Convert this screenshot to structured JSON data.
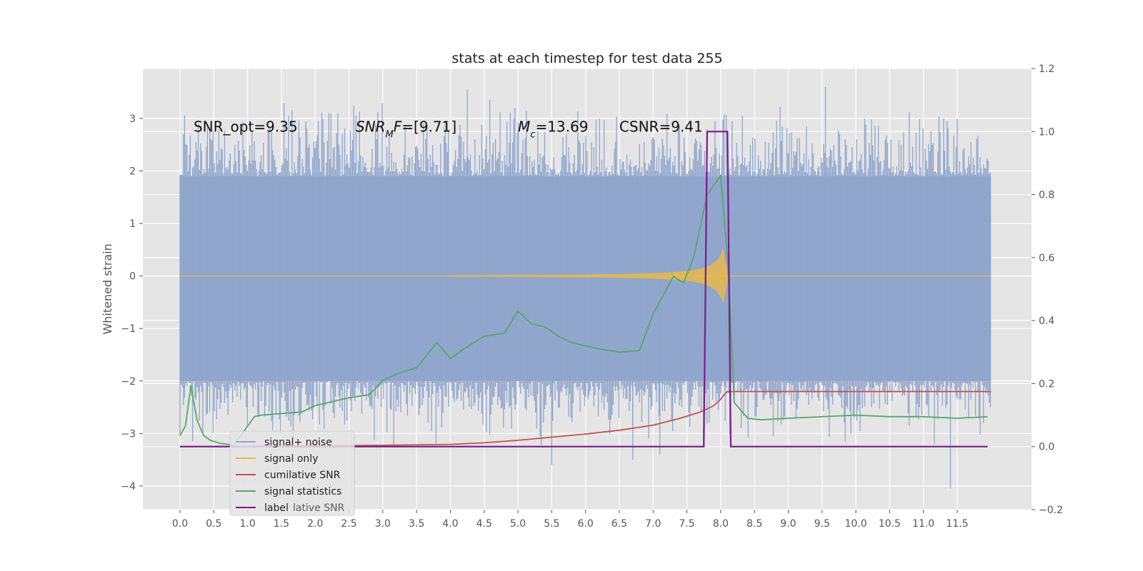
{
  "chart_data": {
    "type": "line",
    "title": "stats at each timestep for test data 255",
    "ylabel": "Whitened strain",
    "y2label": "",
    "xlim": [
      -0.55,
      12.6
    ],
    "ylim": [
      -4.45,
      3.95
    ],
    "y2lim": [
      -0.2,
      1.2
    ],
    "grid": true,
    "legend_position": "lower-left",
    "x_ticks": [
      "0.0",
      "0.5",
      "1.0",
      "1.5",
      "2.0",
      "2.5",
      "3.0",
      "3.5",
      "4.0",
      "4.5",
      "5.0",
      "5.5",
      "6.0",
      "6.5",
      "7.0",
      "7.5",
      "8.0",
      "8.5",
      "9.0",
      "9.5",
      "10.0",
      "10.5",
      "11.0",
      "11.5"
    ],
    "y_ticks": [
      "3",
      "2",
      "1",
      "0",
      "−1",
      "−2",
      "−3",
      "−4"
    ],
    "y2_ticks": [
      "1.2",
      "1.0",
      "0.8",
      "0.6",
      "0.4",
      "0.2",
      "0.0",
      "−0.2"
    ],
    "annotations": [
      {
        "parts": [
          {
            "t": "SNR_opt=9.35"
          }
        ],
        "x": 0.2,
        "y": 2.75
      },
      {
        "parts": [
          {
            "t": "SNR",
            "i": true
          },
          {
            "t": "M",
            "i": true,
            "sub": true
          },
          {
            "t": "F",
            "i": true
          },
          {
            "t": "=[9.71]"
          }
        ],
        "x": 2.6,
        "y": 2.75
      },
      {
        "parts": [
          {
            "t": "M",
            "i": true
          },
          {
            "t": "c",
            "i": true,
            "sub": true
          },
          {
            "t": "=13.69"
          }
        ],
        "x": 5.0,
        "y": 2.75
      },
      {
        "parts": [
          {
            "t": "CSNR=9.41"
          }
        ],
        "x": 6.5,
        "y": 2.75
      }
    ],
    "series": [
      {
        "name": "signal+ noise",
        "color": "#8fa5cc",
        "axis": "left",
        "kind": "noise",
        "x_range": [
          0.0,
          12.0
        ],
        "band": [
          -2.0,
          1.9
        ],
        "extremes": [
          -4.05,
          3.6
        ]
      },
      {
        "name": "signal only",
        "color": "#e8b94a",
        "axis": "left",
        "kind": "chirp",
        "x_range": [
          0.0,
          12.0
        ],
        "merger_time": 8.05
      },
      {
        "name": "cumilative SNR",
        "color": "#c44e52",
        "axis": "right",
        "x": [
          0.0,
          1.0,
          2.0,
          3.0,
          4.0,
          4.5,
          5.0,
          5.5,
          6.0,
          6.5,
          7.0,
          7.4,
          7.7,
          7.9,
          8.0,
          8.05,
          8.1,
          9.0,
          10.0,
          11.0,
          12.0
        ],
        "y": [
          0.0,
          0.001,
          0.002,
          0.004,
          0.007,
          0.012,
          0.02,
          0.03,
          0.04,
          0.052,
          0.068,
          0.09,
          0.11,
          0.13,
          0.15,
          0.165,
          0.175,
          0.175,
          0.175,
          0.175,
          0.175
        ]
      },
      {
        "name": "signal statistics",
        "color": "#55a868",
        "axis": "right",
        "x": [
          0.0,
          0.08,
          0.16,
          0.25,
          0.35,
          0.45,
          0.6,
          0.8,
          0.95,
          1.1,
          1.2,
          1.5,
          1.8,
          2.0,
          2.2,
          2.5,
          2.8,
          3.0,
          3.2,
          3.5,
          3.8,
          4.0,
          4.2,
          4.5,
          4.8,
          5.0,
          5.2,
          5.4,
          5.6,
          5.8,
          6.0,
          6.2,
          6.5,
          6.8,
          7.0,
          7.15,
          7.3,
          7.45,
          7.6,
          7.8,
          8.0,
          8.1,
          8.2,
          8.4,
          8.6,
          9.0,
          10.0,
          10.5,
          11.0,
          11.5,
          11.95
        ],
        "y": [
          0.035,
          0.065,
          0.195,
          0.085,
          0.035,
          0.02,
          0.01,
          0.005,
          0.05,
          0.095,
          0.1,
          0.105,
          0.11,
          0.13,
          0.14,
          0.155,
          0.165,
          0.21,
          0.23,
          0.25,
          0.33,
          0.28,
          0.31,
          0.35,
          0.36,
          0.43,
          0.39,
          0.38,
          0.35,
          0.33,
          0.32,
          0.31,
          0.3,
          0.305,
          0.42,
          0.48,
          0.54,
          0.52,
          0.6,
          0.8,
          0.86,
          0.6,
          0.14,
          0.09,
          0.085,
          0.09,
          0.1,
          0.095,
          0.095,
          0.09,
          0.095
        ]
      },
      {
        "name": "label",
        "color": "#7b1a8c",
        "axis": "right",
        "x": [
          0.0,
          7.75,
          7.8,
          8.1,
          8.15,
          11.95
        ],
        "y": [
          0.0,
          0.0,
          1.0,
          1.0,
          0.0,
          0.0
        ]
      }
    ],
    "legend_bg_text": "lative SNR"
  }
}
